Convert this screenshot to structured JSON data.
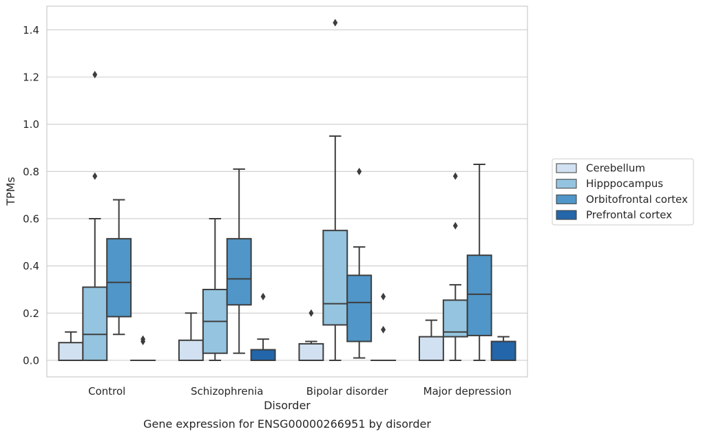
{
  "chart_data": {
    "type": "box",
    "caption": "Gene expression for ENSG00000266951 by disorder",
    "xlabel": "Disorder",
    "ylabel": "TPMs",
    "ylim": [
      -0.07,
      1.5
    ],
    "yticks": [
      "0.0",
      "0.2",
      "0.4",
      "0.6",
      "0.8",
      "1.0",
      "1.2",
      "1.4"
    ],
    "grid": "horizontal",
    "legend_position": "right",
    "categories": [
      "Control",
      "Schizophrenia",
      "Bipolar disorder",
      "Major depression"
    ],
    "series": [
      {
        "name": "Cerebellum",
        "color": "#d1e1f1",
        "boxes": [
          {
            "whislo": 0,
            "q1": 0,
            "med": 0,
            "q3": 0.075,
            "whishi": 0.12,
            "fliers": []
          },
          {
            "whislo": 0,
            "q1": 0,
            "med": 0,
            "q3": 0.085,
            "whishi": 0.2,
            "fliers": []
          },
          {
            "whislo": 0,
            "q1": 0,
            "med": 0,
            "q3": 0.07,
            "whishi": 0.08,
            "fliers": [
              0.2
            ]
          },
          {
            "whislo": 0,
            "q1": 0,
            "med": 0,
            "q3": 0.1,
            "whishi": 0.17,
            "fliers": []
          }
        ]
      },
      {
        "name": "Hipppocampus",
        "color": "#94c4df",
        "boxes": [
          {
            "whislo": 0,
            "q1": 0,
            "med": 0.11,
            "q3": 0.31,
            "whishi": 0.6,
            "fliers": [
              0.78,
              1.21
            ]
          },
          {
            "whislo": 0,
            "q1": 0.03,
            "med": 0.165,
            "q3": 0.3,
            "whishi": 0.6,
            "fliers": []
          },
          {
            "whislo": 0,
            "q1": 0.15,
            "med": 0.24,
            "q3": 0.55,
            "whishi": 0.95,
            "fliers": [
              1.43
            ]
          },
          {
            "whislo": 0,
            "q1": 0.1,
            "med": 0.12,
            "q3": 0.255,
            "whishi": 0.32,
            "fliers": [
              0.57,
              0.78
            ]
          }
        ]
      },
      {
        "name": "Orbitofrontal cortex",
        "color": "#5096c8",
        "boxes": [
          {
            "whislo": 0.11,
            "q1": 0.185,
            "med": 0.33,
            "q3": 0.515,
            "whishi": 0.68,
            "fliers": []
          },
          {
            "whislo": 0.03,
            "q1": 0.235,
            "med": 0.345,
            "q3": 0.515,
            "whishi": 0.81,
            "fliers": []
          },
          {
            "whislo": 0.01,
            "q1": 0.08,
            "med": 0.245,
            "q3": 0.36,
            "whishi": 0.48,
            "fliers": [
              0.8
            ]
          },
          {
            "whislo": 0,
            "q1": 0.105,
            "med": 0.28,
            "q3": 0.445,
            "whishi": 0.83,
            "fliers": []
          }
        ]
      },
      {
        "name": "Prefrontal cortex",
        "color": "#2366a9",
        "boxes": [
          {
            "whislo": 0,
            "q1": 0,
            "med": 0,
            "q3": 0,
            "whishi": 0,
            "fliers": [
              0.08,
              0.09
            ]
          },
          {
            "whislo": 0,
            "q1": 0,
            "med": 0,
            "q3": 0.045,
            "whishi": 0.09,
            "fliers": [
              0.27
            ]
          },
          {
            "whislo": 0,
            "q1": 0,
            "med": 0,
            "q3": 0,
            "whishi": 0,
            "fliers": [
              0.13,
              0.27
            ]
          },
          {
            "whislo": 0,
            "q1": 0,
            "med": 0,
            "q3": 0.08,
            "whishi": 0.1,
            "fliers": []
          }
        ]
      }
    ]
  }
}
